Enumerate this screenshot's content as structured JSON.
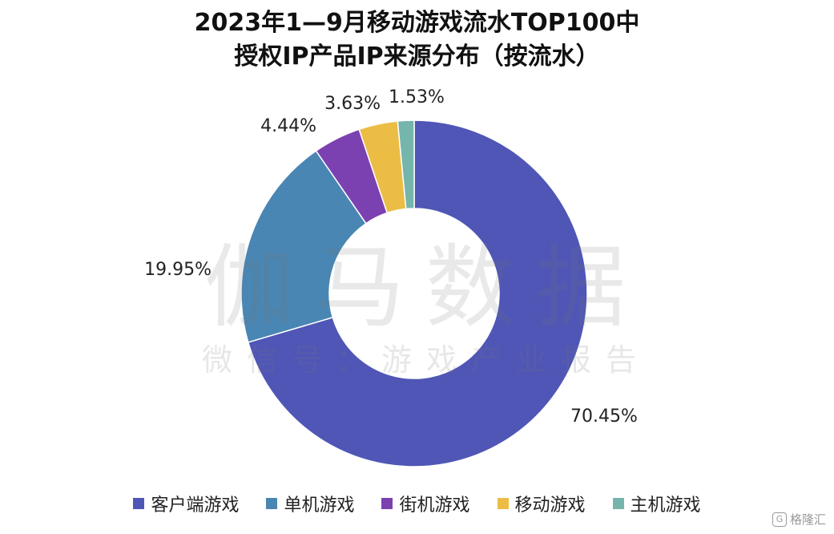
{
  "title_line1": "2023年1—9月移动游戏流水TOP100中",
  "title_line2": "授权IP产品IP来源分布（按流水）",
  "watermark": {
    "main": "伽马数据",
    "sub": "微信号：游戏产业报告"
  },
  "brand": "格隆汇",
  "chart_data": {
    "type": "pie",
    "donut": true,
    "start_angle_deg": 0,
    "direction": "clockwise",
    "categories": [
      "客户端游戏",
      "单机游戏",
      "街机游戏",
      "移动游戏",
      "主机游戏"
    ],
    "values": [
      70.45,
      19.95,
      4.44,
      3.63,
      1.53
    ],
    "labels": [
      "70.45%",
      "19.95%",
      "4.44%",
      "3.63%",
      "1.53%"
    ],
    "colors": [
      "#4f56b6",
      "#4a86b3",
      "#7b41b1",
      "#ecbd45",
      "#75b5ab"
    ],
    "legend_position": "bottom",
    "title": "2023年1—9月移动游戏流水TOP100中授权IP产品IP来源分布（按流水）"
  }
}
